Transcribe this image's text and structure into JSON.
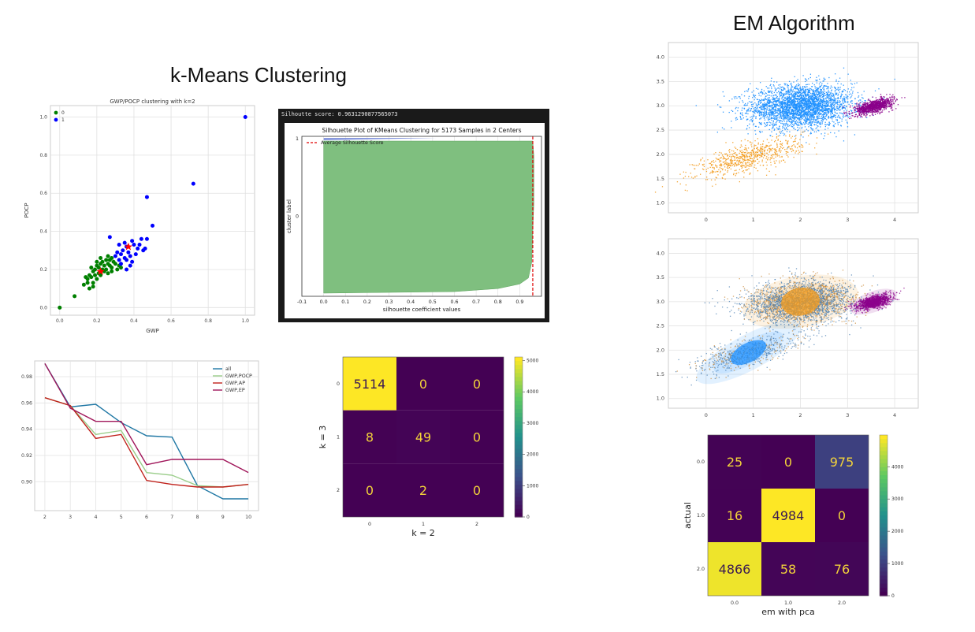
{
  "headings": {
    "kmeans": "k-Means Clustering",
    "em": "EM Algorithm"
  },
  "colors": {
    "kmeans_cluster0": "#008000",
    "kmeans_cluster1": "#0000ff",
    "centroid": "#ff0000",
    "em_blue": "#1e90ff",
    "em_orange": "#f39c1f",
    "em_purple": "#8b008b",
    "silhouette_fill": "#7fbf7f",
    "avg_line": "#e00000"
  },
  "chart_data": [
    {
      "id": "kmeans_scatter",
      "type": "scatter",
      "title": "GWP/POCP clustering with k=2",
      "xlabel": "GWP",
      "ylabel": "POCP",
      "xlim": [
        -0.05,
        1.05
      ],
      "ylim": [
        -0.04,
        1.06
      ],
      "xticks": [
        0.0,
        0.2,
        0.4,
        0.6,
        0.8,
        1.0
      ],
      "yticks": [
        0.0,
        0.2,
        0.4,
        0.6,
        0.8,
        1.0
      ],
      "tick_labels_x": [
        "0.0",
        "0.2",
        "0.4",
        "0.6",
        "0.8",
        "1.0"
      ],
      "tick_labels_y": [
        "0.0",
        "0.2",
        "0.4",
        "0.6",
        "0.8",
        "1.0"
      ],
      "grid": true,
      "legend": {
        "placement": "top-left",
        "entries": [
          "0",
          "1"
        ]
      },
      "series": [
        {
          "name": "0",
          "color": "#008000",
          "points": [
            [
              0.0,
              0.0
            ],
            [
              0.08,
              0.06
            ],
            [
              0.13,
              0.12
            ],
            [
              0.15,
              0.15
            ],
            [
              0.16,
              0.17
            ],
            [
              0.17,
              0.16
            ],
            [
              0.18,
              0.19
            ],
            [
              0.19,
              0.2
            ],
            [
              0.2,
              0.22
            ],
            [
              0.21,
              0.21
            ],
            [
              0.22,
              0.23
            ],
            [
              0.23,
              0.24
            ],
            [
              0.24,
              0.22
            ],
            [
              0.25,
              0.25
            ],
            [
              0.26,
              0.27
            ],
            [
              0.27,
              0.25
            ],
            [
              0.28,
              0.26
            ],
            [
              0.29,
              0.24
            ],
            [
              0.3,
              0.23
            ],
            [
              0.17,
              0.21
            ],
            [
              0.19,
              0.17
            ],
            [
              0.21,
              0.18
            ],
            [
              0.23,
              0.2
            ],
            [
              0.25,
              0.2
            ],
            [
              0.27,
              0.22
            ],
            [
              0.15,
              0.13
            ],
            [
              0.14,
              0.16
            ],
            [
              0.18,
              0.13
            ],
            [
              0.2,
              0.15
            ],
            [
              0.22,
              0.17
            ],
            [
              0.24,
              0.19
            ],
            [
              0.26,
              0.23
            ],
            [
              0.28,
              0.21
            ],
            [
              0.18,
              0.11
            ],
            [
              0.16,
              0.1
            ],
            [
              0.26,
              0.18
            ],
            [
              0.28,
              0.19
            ],
            [
              0.31,
              0.2
            ],
            [
              0.32,
              0.22
            ],
            [
              0.33,
              0.21
            ],
            [
              0.22,
              0.26
            ],
            [
              0.2,
              0.24
            ]
          ]
        },
        {
          "name": "1",
          "color": "#0000ff",
          "points": [
            [
              1.0,
              1.0
            ],
            [
              0.72,
              0.65
            ],
            [
              0.47,
              0.58
            ],
            [
              0.5,
              0.43
            ],
            [
              0.27,
              0.37
            ],
            [
              0.3,
              0.27
            ],
            [
              0.31,
              0.29
            ],
            [
              0.32,
              0.25
            ],
            [
              0.33,
              0.28
            ],
            [
              0.34,
              0.3
            ],
            [
              0.35,
              0.26
            ],
            [
              0.36,
              0.32
            ],
            [
              0.37,
              0.29
            ],
            [
              0.38,
              0.27
            ],
            [
              0.4,
              0.33
            ],
            [
              0.42,
              0.31
            ],
            [
              0.45,
              0.3
            ],
            [
              0.46,
              0.31
            ],
            [
              0.47,
              0.36
            ],
            [
              0.44,
              0.36
            ],
            [
              0.35,
              0.34
            ],
            [
              0.39,
              0.24
            ],
            [
              0.41,
              0.28
            ],
            [
              0.43,
              0.33
            ],
            [
              0.36,
              0.2
            ],
            [
              0.38,
              0.22
            ],
            [
              0.33,
              0.23
            ],
            [
              0.39,
              0.35
            ],
            [
              0.32,
              0.33
            ],
            [
              0.36,
              0.25
            ]
          ]
        },
        {
          "name": "centroid",
          "color": "#ff0000",
          "points": [
            [
              0.22,
              0.19
            ],
            [
              0.37,
              0.32
            ]
          ]
        }
      ]
    },
    {
      "id": "silhouette",
      "type": "area",
      "console": "Silhoutte score: 0.9631290877565073",
      "title": "Silhouette Plot of KMeans Clustering for 5173 Samples in 2 Centers",
      "xlabel": "silhouette coefficient values",
      "ylabel": "cluster label",
      "xlim": [
        -0.1,
        1.0
      ],
      "xticks": [
        -0.1,
        0.0,
        0.1,
        0.2,
        0.3,
        0.4,
        0.5,
        0.6,
        0.7,
        0.8,
        0.9
      ],
      "tick_labels_x": [
        "-0.1",
        "0.0",
        "0.1",
        "0.2",
        "0.3",
        "0.4",
        "0.5",
        "0.6",
        "0.7",
        "0.8",
        "0.9"
      ],
      "ytick_labels": [
        "1",
        "0"
      ],
      "legend": {
        "placement": "top-left",
        "entries": [
          "Average Silhouette Score"
        ]
      },
      "avg_score": 0.96,
      "cluster0_profile": [
        [
          0.96,
          1.0
        ],
        [
          0.965,
          0.9
        ],
        [
          0.965,
          0.6
        ],
        [
          0.96,
          0.4
        ],
        [
          0.955,
          0.2
        ],
        [
          0.94,
          0.1
        ],
        [
          0.9,
          0.06
        ],
        [
          0.8,
          0.03
        ],
        [
          0.6,
          0.01
        ],
        [
          0.0,
          0.0
        ]
      ],
      "cluster1_max": 0.52
    },
    {
      "id": "scores_line",
      "type": "line",
      "xlim": [
        1.6,
        10.4
      ],
      "ylim": [
        0.878,
        0.992
      ],
      "xticks": [
        2,
        3,
        4,
        5,
        6,
        7,
        8,
        9,
        10
      ],
      "yticks": [
        0.9,
        0.92,
        0.94,
        0.96,
        0.98
      ],
      "tick_labels_x": [
        "2",
        "3",
        "4",
        "5",
        "6",
        "7",
        "8",
        "9",
        "10"
      ],
      "tick_labels_y": [
        "0.90",
        "0.92",
        "0.94",
        "0.96",
        "0.98"
      ],
      "grid": true,
      "legend": {
        "placement": "top-right"
      },
      "x": [
        2,
        3,
        4,
        5,
        6,
        7,
        8,
        9,
        10
      ],
      "series": [
        {
          "name": "all",
          "color": "#1f77a4",
          "values": [
            0.99,
            0.957,
            0.959,
            0.945,
            0.935,
            0.934,
            0.897,
            0.887,
            0.887
          ]
        },
        {
          "name": "GWP,POCP",
          "color": "#9acd8a",
          "values": [
            0.964,
            0.958,
            0.936,
            0.939,
            0.907,
            0.905,
            0.897,
            0.896,
            0.898
          ]
        },
        {
          "name": "GWP,AP",
          "color": "#c0201a",
          "values": [
            0.964,
            0.958,
            0.933,
            0.936,
            0.901,
            0.898,
            0.896,
            0.896,
            0.898
          ]
        },
        {
          "name": "GWP,EP",
          "color": "#a0165a",
          "values": [
            0.99,
            0.956,
            0.946,
            0.946,
            0.913,
            0.917,
            0.917,
            0.917,
            0.907
          ]
        }
      ]
    },
    {
      "id": "kmeans_confusion",
      "type": "heatmap",
      "xlabel": "k = 2",
      "ylabel": "k = 3",
      "x_tick_labels": [
        "0",
        "1",
        "2"
      ],
      "y_tick_labels": [
        "0",
        "1",
        "2"
      ],
      "values": [
        [
          5114,
          0,
          0
        ],
        [
          8,
          49,
          0
        ],
        [
          0,
          2,
          0
        ]
      ],
      "cell_labels": [
        [
          "5114",
          "0",
          "0"
        ],
        [
          "8",
          "49",
          "0"
        ],
        [
          "0",
          "2",
          "0"
        ]
      ],
      "colorbar_ticks": [
        0,
        1000,
        2000,
        3000,
        4000,
        5000
      ],
      "colorbar_labels": [
        "0",
        "1000",
        "2000",
        "3000",
        "4000",
        "5000"
      ],
      "vmax": 5114
    },
    {
      "id": "em_scatter",
      "type": "scatter",
      "xlim": [
        -0.8,
        4.5
      ],
      "ylim": [
        0.8,
        4.3
      ],
      "xticks": [
        0,
        1,
        2,
        3,
        4
      ],
      "yticks": [
        1.0,
        1.5,
        2.0,
        2.5,
        3.0,
        3.5,
        4.0
      ],
      "tick_labels_x": [
        "0",
        "1",
        "2",
        "3",
        "4"
      ],
      "tick_labels_y": [
        "1.0",
        "1.5",
        "2.0",
        "2.5",
        "3.0",
        "3.5",
        "4.0"
      ],
      "grid": true,
      "clusters": [
        {
          "color": "#1e90ff",
          "center": [
            2.0,
            3.0
          ],
          "sd": [
            0.55,
            0.22
          ],
          "rho": 0.1,
          "n": 3200
        },
        {
          "color": "#f39c1f",
          "center": [
            0.9,
            1.95
          ],
          "sd": [
            0.55,
            0.2
          ],
          "rho": 0.7,
          "n": 700
        },
        {
          "color": "#8b008b",
          "center": [
            3.55,
            3.0
          ],
          "sd": [
            0.2,
            0.08
          ],
          "rho": 0.6,
          "n": 1000
        }
      ]
    },
    {
      "id": "em_ellipses",
      "type": "scatter",
      "xlim": [
        -0.8,
        4.5
      ],
      "ylim": [
        0.8,
        4.3
      ],
      "xticks": [
        0,
        1,
        2,
        3,
        4
      ],
      "yticks": [
        1.0,
        1.5,
        2.0,
        2.5,
        3.0,
        3.5,
        4.0
      ],
      "tick_labels_x": [
        "0",
        "1",
        "2",
        "3",
        "4"
      ],
      "tick_labels_y": [
        "1.0",
        "1.5",
        "2.0",
        "2.5",
        "3.0",
        "3.5",
        "4.0"
      ],
      "grid": true,
      "ellipses": [
        {
          "color": "#f39c1f",
          "center": [
            2.0,
            3.0
          ],
          "rx": 0.75,
          "ry": 0.32,
          "angle": 10
        },
        {
          "color": "#1e90ff",
          "center": [
            0.9,
            1.95
          ],
          "rx": 0.75,
          "ry": 0.22,
          "angle": 28
        },
        {
          "color": "#8b008b",
          "center": [
            3.55,
            3.0
          ],
          "rx": 0.32,
          "ry": 0.13,
          "angle": 20
        }
      ]
    },
    {
      "id": "em_confusion",
      "type": "heatmap",
      "xlabel": "em with pca",
      "ylabel": "actual",
      "x_tick_labels": [
        "0.0",
        "1.0",
        "2.0"
      ],
      "y_tick_labels": [
        "0.0",
        "1.0",
        "2.0"
      ],
      "values": [
        [
          25,
          0,
          975
        ],
        [
          16,
          4984,
          0
        ],
        [
          4866,
          58,
          76
        ]
      ],
      "cell_labels": [
        [
          "25",
          "0",
          "975"
        ],
        [
          "16",
          "4984",
          "0"
        ],
        [
          "4866",
          "58",
          "76"
        ]
      ],
      "colorbar_ticks": [
        0,
        1000,
        2000,
        3000,
        4000
      ],
      "colorbar_labels": [
        "0",
        "1000",
        "2000",
        "3000",
        "4000"
      ],
      "vmax": 4984
    }
  ]
}
